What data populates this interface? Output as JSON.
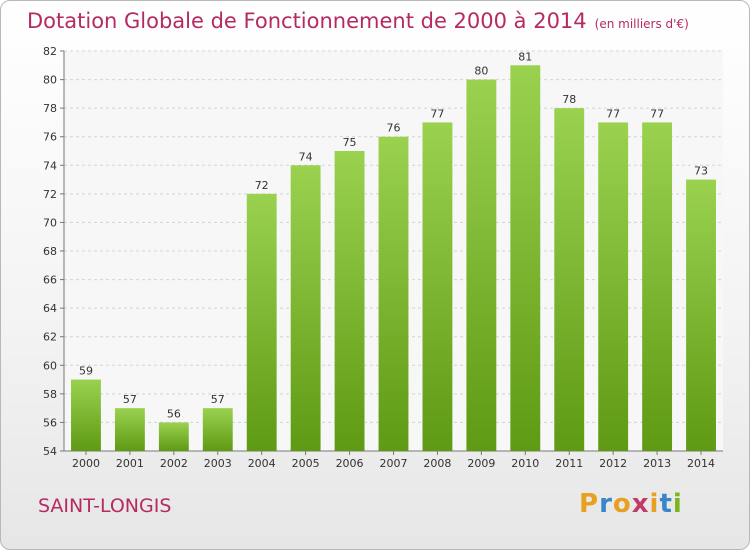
{
  "header": {
    "title": "Dotation Globale de Fonctionnement de 2000 à 2014",
    "unit": "(en milliers d'€)"
  },
  "footer": {
    "commune": "SAINT-LONGIS",
    "brand_letters": [
      "P",
      "r",
      "o",
      "x",
      "i",
      "t",
      "i"
    ],
    "brand_colors": [
      "#e8a020",
      "#3a86c8",
      "#e8a020",
      "#c23a6a",
      "#e8a020",
      "#3a86c8",
      "#7ab520"
    ]
  },
  "chart_data": {
    "type": "bar",
    "categories": [
      "2000",
      "2001",
      "2002",
      "2003",
      "2004",
      "2005",
      "2006",
      "2007",
      "2008",
      "2009",
      "2010",
      "2011",
      "2012",
      "2013",
      "2014"
    ],
    "values": [
      59,
      57,
      56,
      57,
      72,
      74,
      75,
      76,
      77,
      80,
      81,
      78,
      77,
      77,
      73
    ],
    "title": "Dotation Globale de Fonctionnement de 2000 à 2014",
    "xlabel": "",
    "ylabel": "",
    "ylim": [
      54,
      82
    ],
    "yticks": [
      54,
      56,
      58,
      60,
      62,
      64,
      66,
      68,
      70,
      72,
      74,
      76,
      78,
      80,
      82
    ],
    "grid": true,
    "bar_color_top": "#9ad24f",
    "bar_color_bottom": "#5f9a14"
  }
}
